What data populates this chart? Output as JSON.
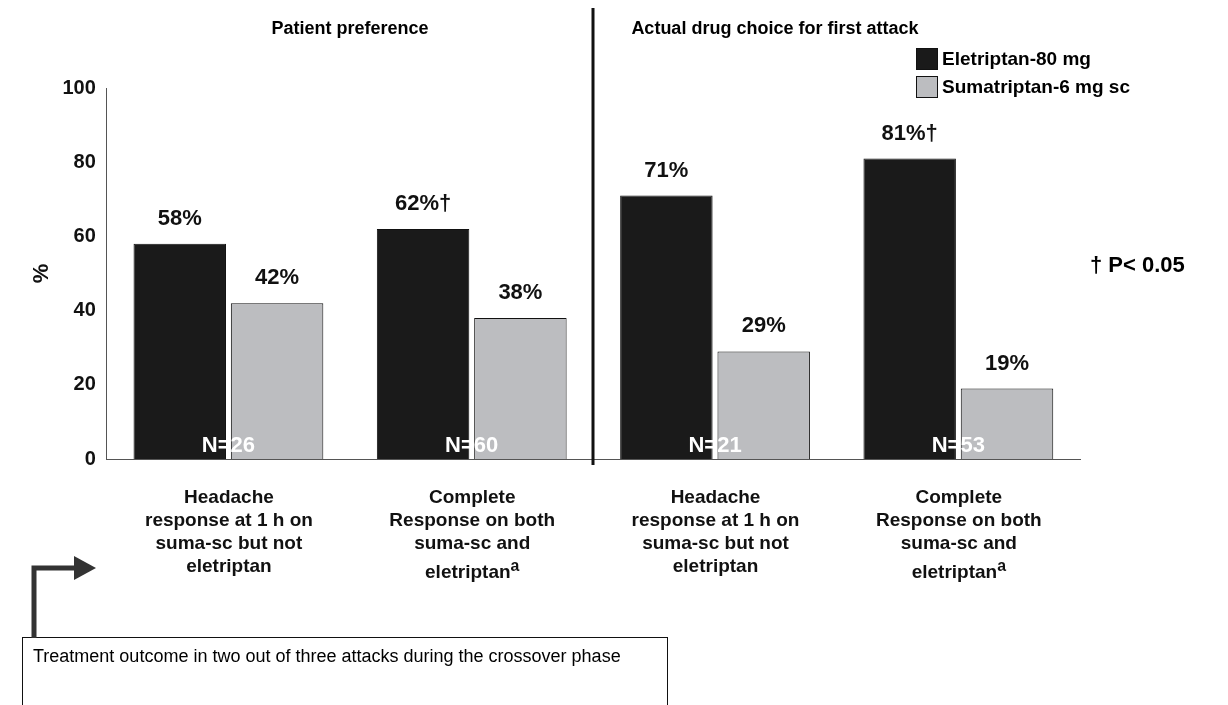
{
  "chart_data": {
    "type": "bar",
    "ylabel": "%",
    "categories": [
      "Headache response at 1 h on suma-sc but not eletriptan",
      "Complete Response on both suma-sc and eletriptan$^{a}$",
      "Headache response at 1 h on suma-sc but not eletriptan",
      "Complete Response on both suma-sc and eletriptan$^{a}$"
    ],
    "series": [
      {
        "name": "Eletriptan-80 mg",
        "color": "#1a1a1a",
        "values": [
          58,
          62,
          71,
          81
        ],
        "value_labels": [
          "58%",
          "62%†",
          "71%",
          "81%†"
        ]
      },
      {
        "name": "Sumatriptan-6 mg sc",
        "color": "#bcbdc0",
        "values": [
          42,
          38,
          29,
          19
        ],
        "value_labels": [
          "42%",
          "38%",
          "29%",
          "19%"
        ]
      }
    ],
    "ylim": [
      0,
      100
    ],
    "yticks": [
      0,
      20,
      40,
      60,
      80,
      100
    ],
    "grid": false,
    "legend": "top right",
    "annotations": [
      "N=26",
      "N=60",
      "N=21",
      "N=53",
      "Patient preference",
      "Actual drug choice for first attack",
      "† P< 0.05",
      "Treatment outcome in two out of three attacks during the crossover phase"
    ]
  }
}
